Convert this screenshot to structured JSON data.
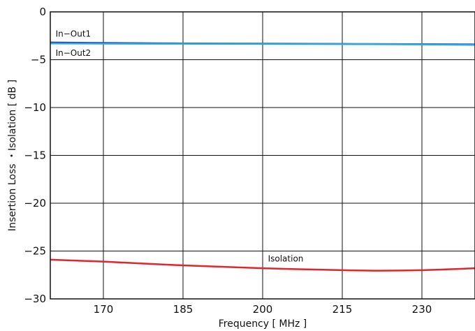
{
  "chart_data": {
    "type": "line",
    "title": "",
    "xlabel": "Frequency [ MHz ]",
    "ylabel": "Insertion Loss ・Isolation [ dB ]",
    "xlim": [
      160,
      240
    ],
    "ylim": [
      -30,
      0
    ],
    "xticks": [
      170,
      185,
      200,
      215,
      230
    ],
    "xtick_labels": [
      "170",
      "185",
      "200",
      "215",
      "230"
    ],
    "yticks": [
      0,
      -5,
      -10,
      -15,
      -20,
      -25,
      -30
    ],
    "ytick_labels": [
      "0",
      "−5",
      "−10",
      "−15",
      "−20",
      "−25",
      "−30"
    ],
    "grid": true,
    "legend": "none",
    "series": [
      {
        "name": "In-Out1",
        "color": "#2b2f9a",
        "x": [
          160,
          170,
          185,
          200,
          215,
          230,
          240
        ],
        "y": [
          -3.2,
          -3.25,
          -3.3,
          -3.32,
          -3.35,
          -3.38,
          -3.4
        ]
      },
      {
        "name": "In-Out2",
        "color": "#2aa8e0",
        "x": [
          160,
          170,
          185,
          200,
          215,
          230,
          240
        ],
        "y": [
          -3.3,
          -3.32,
          -3.33,
          -3.35,
          -3.37,
          -3.4,
          -3.45
        ]
      },
      {
        "name": "Isolation",
        "color": "#e0262c",
        "x": [
          160,
          170,
          185,
          200,
          215,
          222,
          230,
          240
        ],
        "y": [
          -25.9,
          -26.1,
          -26.5,
          -26.8,
          -27.0,
          -27.05,
          -27.0,
          -26.8
        ]
      }
    ],
    "annotations": [
      {
        "text": "In−Out1",
        "x": 161,
        "y": -2.6
      },
      {
        "text": "In−Out2",
        "x": 161,
        "y": -4.6
      },
      {
        "text": "Isolation",
        "x": 201,
        "y": -26.1
      }
    ]
  }
}
